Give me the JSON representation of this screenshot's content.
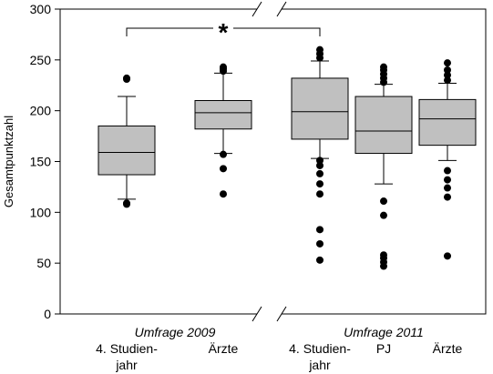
{
  "chart_data": {
    "type": "box",
    "ylabel": "Gesamtpunktzahl",
    "xlabel": "",
    "ylim": [
      0,
      300
    ],
    "yticks": [
      0,
      50,
      100,
      150,
      200,
      250,
      300
    ],
    "grid": false,
    "axis_break": "between-surveys",
    "surveys": [
      {
        "name": "Umfrage 2009",
        "groups": [
          0,
          1
        ]
      },
      {
        "name": "Umfrage 2011",
        "groups": [
          2,
          3,
          4
        ]
      }
    ],
    "groups": [
      {
        "label_lines": [
          "4. Studien-",
          "jahr"
        ],
        "survey": "Umfrage 2009",
        "whisker_low": 113,
        "q1": 137,
        "median": 159,
        "q3": 185,
        "whisker_high": 214,
        "outliers": [
          108,
          109,
          231,
          232
        ]
      },
      {
        "label_lines": [
          "Ärzte"
        ],
        "survey": "Umfrage 2009",
        "whisker_low": 158,
        "q1": 182,
        "median": 198,
        "q3": 210,
        "whisker_high": 237,
        "outliers": [
          118,
          143,
          157,
          239,
          241,
          243
        ]
      },
      {
        "label_lines": [
          "4. Studien-",
          "jahr"
        ],
        "survey": "Umfrage 2011",
        "whisker_low": 153,
        "q1": 172,
        "median": 199,
        "q3": 232,
        "whisker_high": 249,
        "outliers": [
          53,
          69,
          83,
          118,
          128,
          138,
          146,
          151,
          252,
          256,
          260
        ]
      },
      {
        "label_lines": [
          "PJ"
        ],
        "survey": "Umfrage 2011",
        "whisker_low": 128,
        "q1": 158,
        "median": 180,
        "q3": 214,
        "whisker_high": 226,
        "outliers": [
          47,
          51,
          55,
          58,
          97,
          111,
          228,
          232,
          236,
          240,
          243
        ]
      },
      {
        "label_lines": [
          "Ärzte"
        ],
        "survey": "Umfrage 2011",
        "whisker_low": 151,
        "q1": 166,
        "median": 192,
        "q3": 211,
        "whisker_high": 227,
        "outliers": [
          57,
          115,
          124,
          132,
          141,
          230,
          235,
          240,
          247
        ]
      }
    ],
    "significance": {
      "symbol": "*",
      "from_group": 0,
      "to_group": 2
    },
    "colors": {
      "box_fill": "#c0c0c0",
      "line": "#000000",
      "outlier": "#000000"
    }
  }
}
